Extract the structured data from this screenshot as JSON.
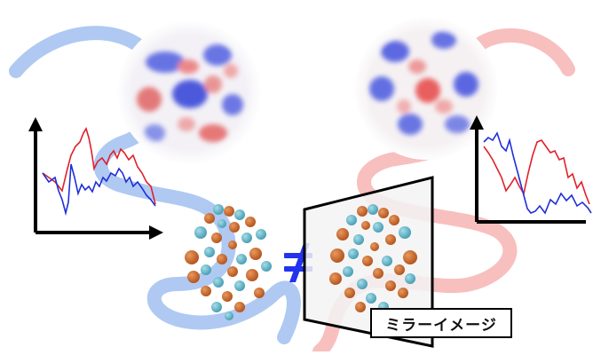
{
  "caption": "ミラーイメージ",
  "colors": {
    "blue_helix": "#5b8de8",
    "red_helix": "#f07e7e",
    "blue_line": "#1f2fd8",
    "red_line": "#e0202a",
    "not_equal": "#2233ee",
    "sphere_orange": "#c7662c",
    "sphere_teal": "#5fb6c8",
    "mirror_fill": "#f3f3f3"
  },
  "icons": {
    "not_equal": "not-equal-sign",
    "mirror": "mirror-panel"
  }
}
